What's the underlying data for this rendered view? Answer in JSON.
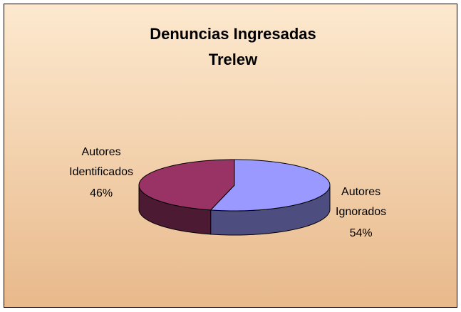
{
  "chart_data": {
    "type": "pie3d",
    "title": [
      "Denuncias Ingresadas",
      "Trelew"
    ],
    "categories": [
      "Autores Ignorados",
      "Autores Identificados"
    ],
    "values": [
      54,
      46
    ],
    "value_labels": [
      "54%",
      "46%"
    ],
    "colors": [
      "#9999ff",
      "#993366"
    ]
  }
}
